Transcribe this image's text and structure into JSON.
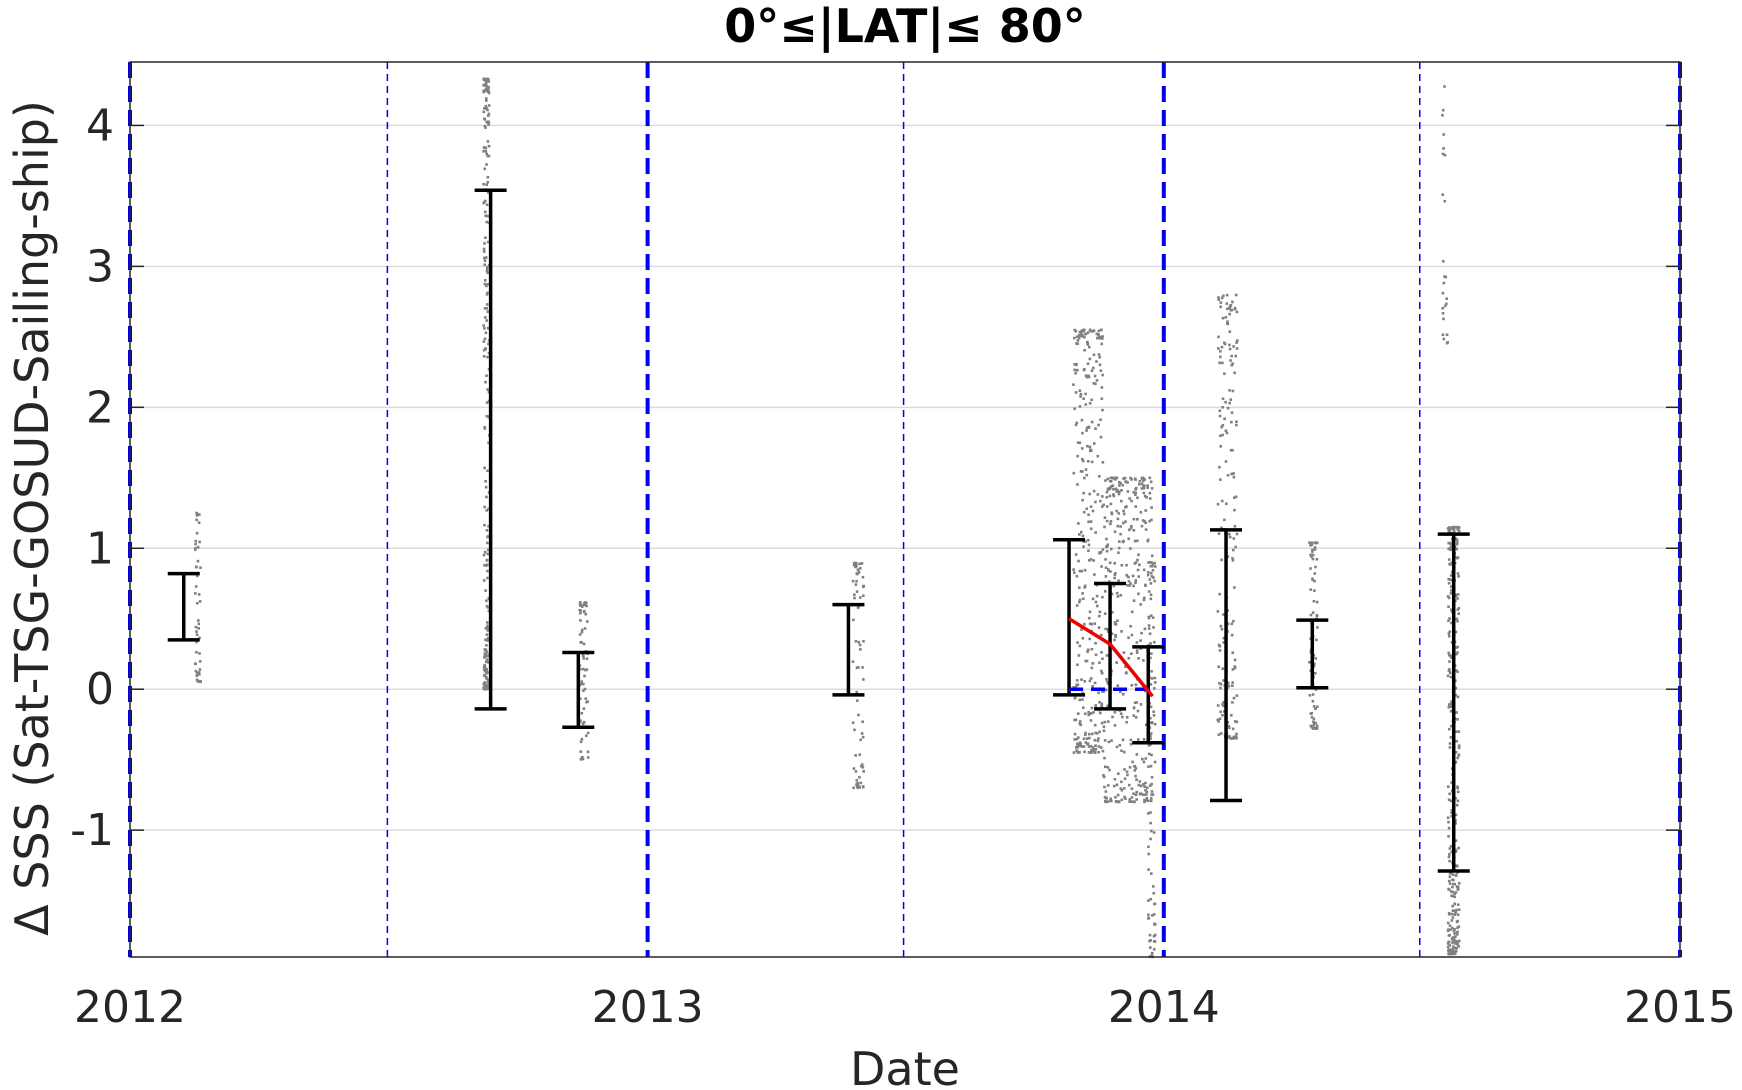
{
  "chart_data": {
    "type": "scatter",
    "title": "0°≤|LAT|≤ 80°",
    "xlabel": "Date",
    "ylabel": "Δ SSS (Sat-TSG-GOSUD-Sailing-ship)",
    "xlim": [
      "2012-01-01",
      "2015-01-01"
    ],
    "ylim": [
      -1.9,
      4.45
    ],
    "xticks": [
      "2012",
      "2013",
      "2014",
      "2015"
    ],
    "yticks": [
      -1,
      0,
      1,
      2,
      3,
      4
    ],
    "grid": "horizontal",
    "colors": {
      "scatter": "#808080",
      "errorbar": "#000000",
      "year_line": "#0000ee",
      "half_year_line": "#0000ee",
      "trend_line": "#ee0000",
      "zero_line": "#0000ee"
    },
    "year_lines": [
      "2012-01-01",
      "2013-01-01",
      "2014-01-01",
      "2015-01-01"
    ],
    "half_year_lines": [
      "2012-07-01",
      "2013-07-01",
      "2014-07-01"
    ],
    "error_bars": [
      {
        "date": "2012-02-08",
        "low": 0.35,
        "high": 0.82
      },
      {
        "date": "2012-09-12",
        "low": -0.14,
        "high": 3.54
      },
      {
        "date": "2012-11-13",
        "low": -0.27,
        "high": 0.26
      },
      {
        "date": "2013-05-23",
        "low": -0.04,
        "high": 0.6
      },
      {
        "date": "2013-10-26",
        "low": -0.04,
        "high": 1.06
      },
      {
        "date": "2013-11-24",
        "low": -0.14,
        "high": 0.75
      },
      {
        "date": "2013-12-21",
        "low": -0.38,
        "high": 0.3
      },
      {
        "date": "2014-02-14",
        "low": -0.79,
        "high": 1.13
      },
      {
        "date": "2014-04-16",
        "low": 0.01,
        "high": 0.49
      },
      {
        "date": "2014-07-25",
        "low": -1.29,
        "high": 1.1
      }
    ],
    "trend_line": [
      {
        "date": "2013-10-26",
        "value": 0.5
      },
      {
        "date": "2013-11-24",
        "value": 0.32
      },
      {
        "date": "2013-12-24",
        "value": -0.05
      }
    ],
    "zero_line": {
      "from": "2013-10-26",
      "to": "2013-12-24",
      "value": 0.0
    },
    "scatter_clusters": [
      {
        "date_start": "2012-02-16",
        "date_end": "2012-02-20",
        "y_min": 0.05,
        "y_max": 1.25,
        "count": 50,
        "seed": 11
      },
      {
        "date_start": "2012-09-07",
        "date_end": "2012-09-11",
        "y_min": 0.0,
        "y_max": 4.33,
        "count": 220,
        "seed": 17
      },
      {
        "date_start": "2012-11-14",
        "date_end": "2012-11-20",
        "y_min": -0.5,
        "y_max": 0.62,
        "count": 70,
        "seed": 23
      },
      {
        "date_start": "2013-05-26",
        "date_end": "2013-06-03",
        "y_min": -0.7,
        "y_max": 0.9,
        "count": 70,
        "seed": 29
      },
      {
        "date_start": "2013-10-29",
        "date_end": "2013-11-19",
        "y_min": -0.45,
        "y_max": 2.55,
        "count": 320,
        "seed": 31
      },
      {
        "date_start": "2013-11-19",
        "date_end": "2013-12-24",
        "y_min": -0.8,
        "y_max": 1.5,
        "count": 380,
        "seed": 37
      },
      {
        "date_start": "2013-12-21",
        "date_end": "2013-12-26",
        "y_min": -1.9,
        "y_max": 0.9,
        "count": 90,
        "seed": 41
      },
      {
        "date_start": "2014-02-08",
        "date_end": "2014-02-22",
        "y_min": -0.35,
        "y_max": 2.8,
        "count": 180,
        "seed": 43
      },
      {
        "date_start": "2014-04-14",
        "date_end": "2014-04-20",
        "y_min": -0.28,
        "y_max": 1.04,
        "count": 80,
        "seed": 47
      },
      {
        "date_start": "2014-07-17",
        "date_end": "2014-07-21",
        "y_min": 2.45,
        "y_max": 4.38,
        "count": 25,
        "seed": 53
      },
      {
        "date_start": "2014-07-21",
        "date_end": "2014-07-29",
        "y_min": -1.88,
        "y_max": 1.15,
        "count": 320,
        "seed": 59
      }
    ]
  }
}
